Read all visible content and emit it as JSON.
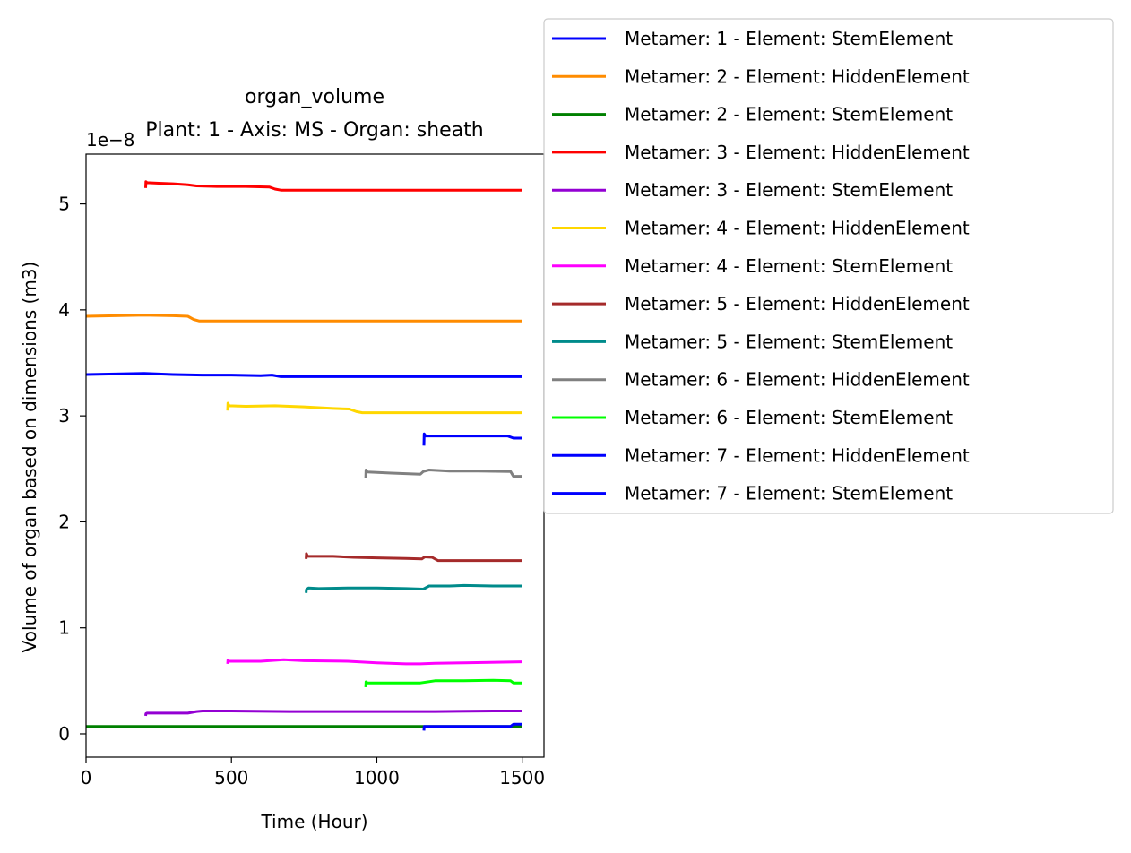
{
  "chart_data": {
    "type": "line",
    "title": "organ_volume",
    "subtitle": "Plant: 1 - Axis: MS - Organ: sheath",
    "xlabel": "Time (Hour)",
    "ylabel": "Volume of organ based on dimensions (m3)",
    "offset_label": "1e−8",
    "xlim": [
      0,
      1575
    ],
    "ylim": [
      -0.22,
      5.47
    ],
    "xticks": [
      0,
      500,
      1000,
      1500
    ],
    "xtick_labels": [
      "0",
      "500",
      "1000",
      "1500"
    ],
    "yticks": [
      0,
      1,
      2,
      3,
      4,
      5
    ],
    "ytick_labels": [
      "0",
      "1",
      "2",
      "3",
      "4",
      "5"
    ],
    "grid": false,
    "legend_position": "outside-top-right",
    "series": [
      {
        "name": "Metamer: 1 - Element: StemElement",
        "color": "#0000ff",
        "x": [
          0,
          100,
          200,
          300,
          400,
          500,
          600,
          640,
          670,
          700,
          800,
          1000,
          1200,
          1400,
          1500
        ],
        "y": [
          3.39,
          3.395,
          3.4,
          3.39,
          3.385,
          3.385,
          3.38,
          3.385,
          3.37,
          3.37,
          3.37,
          3.37,
          3.37,
          3.37,
          3.37
        ]
      },
      {
        "name": "Metamer: 2 - Element: HiddenElement",
        "color": "#ff8c00",
        "x": [
          0,
          100,
          200,
          300,
          350,
          370,
          390,
          500,
          700,
          900,
          1100,
          1300,
          1500
        ],
        "y": [
          3.94,
          3.945,
          3.95,
          3.945,
          3.94,
          3.91,
          3.895,
          3.895,
          3.895,
          3.895,
          3.895,
          3.895,
          3.895
        ]
      },
      {
        "name": "Metamer: 2 - Element: StemElement",
        "color": "#008000",
        "x": [
          0,
          300,
          600,
          900,
          1200,
          1500
        ],
        "y": [
          0.07,
          0.07,
          0.07,
          0.07,
          0.07,
          0.07
        ]
      },
      {
        "name": "Metamer: 3 - Element: HiddenElement",
        "color": "#ff0000",
        "x": [
          205,
          206,
          210,
          250,
          300,
          350,
          380,
          450,
          550,
          630,
          650,
          670,
          700,
          900,
          1100,
          1300,
          1500
        ],
        "y": [
          5.15,
          5.21,
          5.2,
          5.195,
          5.19,
          5.18,
          5.17,
          5.165,
          5.165,
          5.16,
          5.14,
          5.13,
          5.13,
          5.13,
          5.13,
          5.13,
          5.13
        ]
      },
      {
        "name": "Metamer: 3 - Element: StemElement",
        "color": "#9400d3",
        "x": [
          205,
          206,
          210,
          280,
          350,
          380,
          400,
          500,
          700,
          1000,
          1200,
          1400,
          1500
        ],
        "y": [
          0.17,
          0.19,
          0.195,
          0.195,
          0.195,
          0.21,
          0.215,
          0.215,
          0.21,
          0.21,
          0.21,
          0.215,
          0.215
        ]
      },
      {
        "name": "Metamer: 4 - Element: HiddenElement",
        "color": "#ffd700",
        "x": [
          487,
          488,
          492,
          550,
          650,
          750,
          850,
          905,
          930,
          950,
          1100,
          1300,
          1500
        ],
        "y": [
          3.05,
          3.12,
          3.095,
          3.09,
          3.095,
          3.085,
          3.07,
          3.065,
          3.04,
          3.03,
          3.03,
          3.03,
          3.03
        ]
      },
      {
        "name": "Metamer: 4 - Element: StemElement",
        "color": "#ff00ff",
        "x": [
          487,
          488,
          492,
          600,
          680,
          750,
          900,
          1000,
          1100,
          1150,
          1200,
          1300,
          1500
        ],
        "y": [
          0.66,
          0.695,
          0.685,
          0.685,
          0.7,
          0.69,
          0.685,
          0.67,
          0.66,
          0.66,
          0.665,
          0.67,
          0.68
        ]
      },
      {
        "name": "Metamer: 5 - Element: HiddenElement",
        "color": "#a52a2a",
        "x": [
          757,
          758,
          762,
          850,
          920,
          1000,
          1100,
          1155,
          1165,
          1190,
          1210,
          1300,
          1500
        ],
        "y": [
          1.65,
          1.7,
          1.675,
          1.675,
          1.665,
          1.66,
          1.655,
          1.65,
          1.67,
          1.665,
          1.635,
          1.635,
          1.635
        ]
      },
      {
        "name": "Metamer: 5 - Element: StemElement",
        "color": "#008b8b",
        "x": [
          757,
          758,
          765,
          800,
          900,
          1000,
          1100,
          1160,
          1180,
          1250,
          1300,
          1400,
          1500
        ],
        "y": [
          1.33,
          1.36,
          1.375,
          1.37,
          1.375,
          1.375,
          1.37,
          1.365,
          1.395,
          1.395,
          1.4,
          1.395,
          1.395
        ]
      },
      {
        "name": "Metamer: 6 - Element: HiddenElement",
        "color": "#808080",
        "x": [
          962,
          963,
          968,
          1050,
          1150,
          1160,
          1180,
          1250,
          1350,
          1460,
          1470,
          1500
        ],
        "y": [
          2.41,
          2.49,
          2.47,
          2.46,
          2.45,
          2.475,
          2.49,
          2.48,
          2.48,
          2.475,
          2.43,
          2.43
        ]
      },
      {
        "name": "Metamer: 6 - Element: StemElement",
        "color": "#00ff00",
        "x": [
          962,
          963,
          968,
          1050,
          1150,
          1200,
          1300,
          1400,
          1460,
          1470,
          1500
        ],
        "y": [
          0.44,
          0.49,
          0.48,
          0.48,
          0.48,
          0.5,
          0.5,
          0.505,
          0.5,
          0.48,
          0.48
        ]
      },
      {
        "name": "Metamer: 7 - Element: HiddenElement",
        "color": "#0000ff",
        "x": [
          1162,
          1163,
          1168,
          1300,
          1450,
          1470,
          1500
        ],
        "y": [
          2.72,
          2.83,
          2.81,
          2.81,
          2.81,
          2.79,
          2.79
        ]
      },
      {
        "name": "Metamer: 7 - Element: StemElement",
        "color": "#0000ff",
        "x": [
          1162,
          1163,
          1168,
          1300,
          1460,
          1470,
          1500
        ],
        "y": [
          0.03,
          0.07,
          0.07,
          0.07,
          0.07,
          0.09,
          0.09
        ]
      }
    ]
  }
}
